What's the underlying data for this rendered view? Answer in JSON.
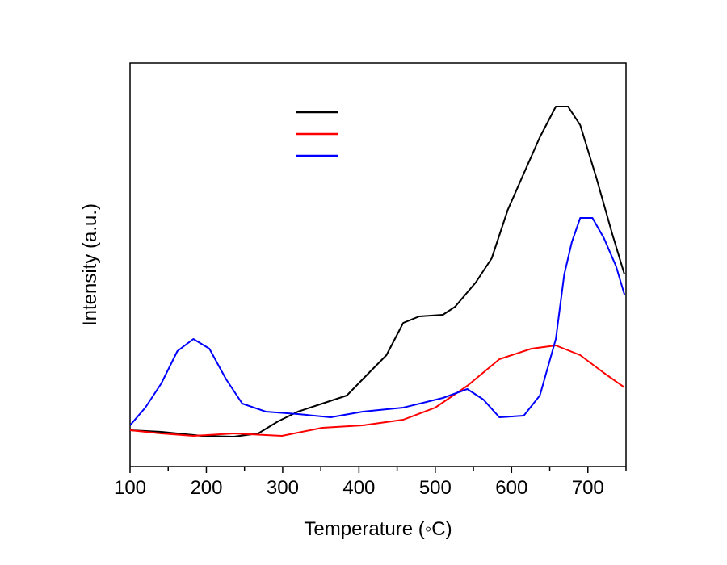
{
  "chart_data": {
    "type": "line",
    "title": "",
    "xlabel": "Temperature (◦C)",
    "ylabel": "Intensity (a.u.)",
    "xlim": [
      100,
      750
    ],
    "ylim": [
      0,
      100
    ],
    "xticks": [
      100,
      200,
      300,
      400,
      500,
      600,
      700
    ],
    "xticks_minor": [
      150,
      250,
      350,
      450,
      550,
      650,
      750
    ],
    "grid": false,
    "legend": {
      "placement": "top-center",
      "entries": [
        "",
        "",
        ""
      ]
    },
    "series": [
      {
        "name": "",
        "color": "#000000",
        "x": [
          100,
          141,
          194,
          236,
          268,
          294,
          320,
          352,
          384,
          415,
          436,
          458,
          479,
          510,
          526,
          553,
          574,
          595,
          616,
          637,
          658,
          674,
          690,
          711,
          732,
          748
        ],
        "y": [
          9,
          8.6,
          7.6,
          7.4,
          8.2,
          11.2,
          13.6,
          15.6,
          17.6,
          23.6,
          27.6,
          35.6,
          37.2,
          37.6,
          39.6,
          45.6,
          51.6,
          63.6,
          72.6,
          81.6,
          89.2,
          89.2,
          84.6,
          71.6,
          57.6,
          47.6
        ]
      },
      {
        "name": "",
        "color": "#ff0000",
        "x": [
          100,
          141,
          183,
          236,
          299,
          352,
          405,
          458,
          500,
          542,
          584,
          626,
          658,
          690,
          721,
          748
        ],
        "y": [
          9,
          8.2,
          7.6,
          8.2,
          7.6,
          9.6,
          10.2,
          11.6,
          14.6,
          20,
          26.6,
          29.2,
          30,
          27.6,
          23.2,
          19.6
        ]
      },
      {
        "name": "",
        "color": "#0000ff",
        "x": [
          100,
          120,
          141,
          162,
          183,
          204,
          226,
          247,
          278,
          320,
          363,
          405,
          458,
          510,
          542,
          563,
          584,
          616,
          637,
          658,
          669,
          679,
          690,
          706,
          721,
          737,
          748
        ],
        "y": [
          10.2,
          14.6,
          20.6,
          28.6,
          31.6,
          29.2,
          21.6,
          15.6,
          13.6,
          13,
          12.2,
          13.6,
          14.6,
          17,
          19.2,
          16.6,
          12.2,
          12.6,
          17.6,
          31.6,
          47.6,
          55.6,
          61.6,
          61.6,
          56.6,
          49.6,
          42.6
        ]
      }
    ]
  }
}
